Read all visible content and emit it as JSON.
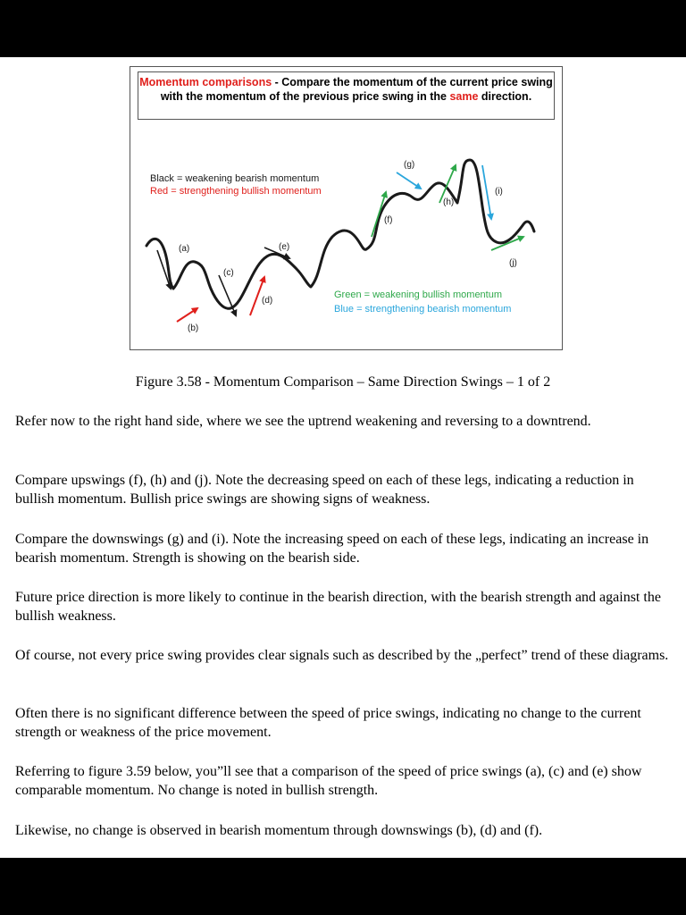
{
  "figure": {
    "title_part1": "Momentum comparisons",
    "title_part2": " - Compare the momentum of the current price swing with the momentum of the previous price swing in the ",
    "title_part3": "same",
    "title_part4": " direction.",
    "legend_black": "Black = weakening bearish momentum",
    "legend_red": "Red = strengthening bullish momentum",
    "legend_green": "Green = weakening bullish momentum",
    "legend_blue": "Blue = strengthening bearish momentum",
    "labels": {
      "a": "(a)",
      "b": "(b)",
      "c": "(c)",
      "d": "(d)",
      "e": "(e)",
      "f": "(f)",
      "g": "(g)",
      "h": "(h)",
      "i": "(i)",
      "j": "(j)"
    },
    "colors": {
      "black": "#1a1a1a",
      "red": "#e0201c",
      "green": "#2ea84a",
      "blue": "#2aa6dc"
    }
  },
  "caption": "Figure 3.58 - Momentum Comparison – Same Direction Swings – 1 of 2",
  "paragraphs": [
    "Refer now to the right hand side, where we see the uptrend weakening and reversing to a downtrend.",
    "Compare upswings (f), (h) and (j). Note the decreasing speed on each of these legs, indicating a reduction in bullish momentum. Bullish price swings are showing signs of weakness.",
    "Compare the downswings (g) and (i). Note the increasing speed on each of these legs, indicating an increase in bearish momentum. Strength is showing on the bearish side.",
    "Future price direction is more likely to continue in the bearish direction, with the bearish strength and against the bullish weakness.",
    "Of course, not every price swing provides clear signals such as described by the „perfect” trend of these diagrams.",
    "Often there is no significant difference between the speed of price swings, indicating no change to the current strength or weakness of the price movement.",
    "Referring to figure 3.59 below, you”ll see that a comparison of the speed of price swings (a), (c) and (e) show comparable momentum. No change is noted in bullish strength.",
    "Likewise, no change is observed in bearish momentum through downswings (b), (d) and (f)."
  ]
}
